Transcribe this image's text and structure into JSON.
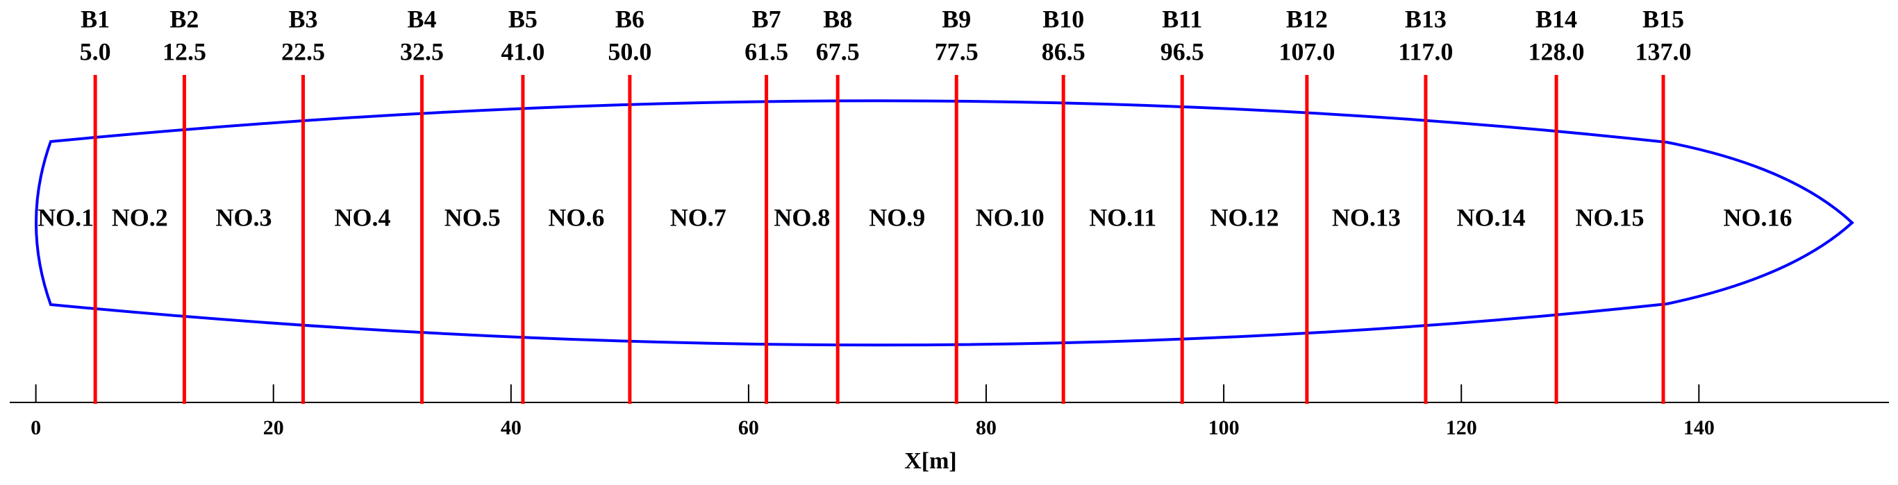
{
  "chart_data": {
    "type": "bulkhead",
    "xlabel": "X[m]",
    "xlim": [
      -2.2,
      156
    ],
    "xticks": [
      0,
      20,
      40,
      60,
      80,
      100,
      120,
      140
    ],
    "categories": [
      "B1",
      "B2",
      "B3",
      "B4",
      "B5",
      "B6",
      "B7",
      "B8",
      "B9",
      "B10",
      "B11",
      "B12",
      "B13",
      "B14",
      "B15"
    ],
    "values": [
      5.0,
      12.5,
      22.5,
      32.5,
      41.0,
      50.0,
      61.5,
      67.5,
      77.5,
      86.5,
      96.5,
      107.0,
      117.0,
      128.0,
      137.0
    ],
    "value_labels": [
      "5.0",
      "12.5",
      "22.5",
      "32.5",
      "41.0",
      "50.0",
      "61.5",
      "67.5",
      "77.5",
      "86.5",
      "96.5",
      "107.0",
      "117.0",
      "128.0",
      "137.0"
    ],
    "compartments": [
      "NO.1",
      "NO.2",
      "NO.3",
      "NO.4",
      "NO.5",
      "NO.6",
      "NO.7",
      "NO.8",
      "NO.9",
      "NO.10",
      "NO.11",
      "NO.12",
      "NO.13",
      "NO.14",
      "NO.15",
      "NO.16"
    ],
    "color": "#ff0000",
    "hull_color": "#0000ff"
  }
}
